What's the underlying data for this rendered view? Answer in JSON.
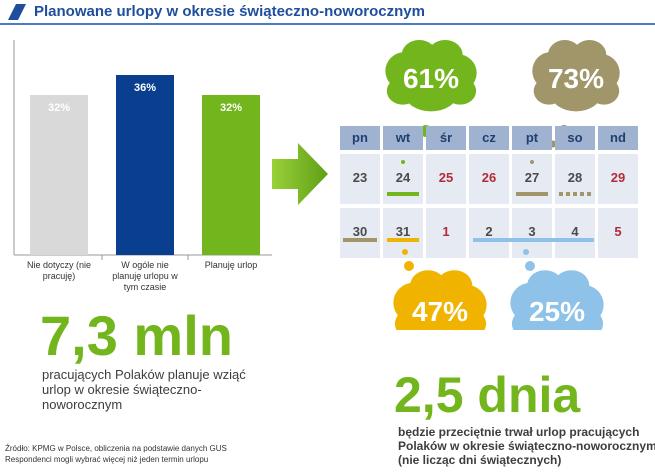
{
  "header": {
    "title": "Planowane urlopy w okresie świąteczno-noworocznym"
  },
  "colors": {
    "accent_blue": "#1f4e9c",
    "gray_bar": "#d9d9d9",
    "navy_bar": "#0a3e8e",
    "green": "#72b51c",
    "olive": "#a0966a",
    "yellow": "#f0b400",
    "light_blue": "#8ec2e8",
    "day_header": "#9fb3d1",
    "day_cell": "#e6ebf3",
    "holiday_red": "#b22c38"
  },
  "chart_data": {
    "type": "bar",
    "categories": [
      "Nie dotyczy (nie pracuję)",
      "W ogóle nie planuję urlopu w tym czasie",
      "Planuję urlop"
    ],
    "values": [
      32,
      36,
      32
    ],
    "value_labels": [
      "32%",
      "36%",
      "32%"
    ],
    "title": "",
    "xlabel": "",
    "ylabel": "",
    "ylim": [
      0,
      40
    ]
  },
  "stat1": {
    "value": "7,3 mln",
    "description": "pracujących Polaków planuje wziąć urlop w okresie świąteczno-noworocznym"
  },
  "source": {
    "line1": "Źródło: KPMG w Polsce, obliczenia na podstawie danych GUS",
    "line2": "Respondenci mogli wybrać więcej niż jeden termin urlopu"
  },
  "calendar": {
    "days": [
      "pn",
      "wt",
      "śr",
      "cz",
      "pt",
      "so",
      "nd"
    ],
    "week1": [
      "23",
      "24",
      "25",
      "26",
      "27",
      "28",
      "29"
    ],
    "week2": [
      "30",
      "31",
      "1",
      "2",
      "3",
      "4",
      "5"
    ],
    "holidays": [
      "25",
      "26",
      "29",
      "1",
      "5"
    ]
  },
  "bubbles": {
    "b61": "61%",
    "b73": "73%",
    "b47": "47%",
    "b25": "25%"
  },
  "stat2": {
    "value": "2,5 dnia",
    "description": "będzie przeciętnie trwał urlop pracujących Polaków w okresie świąteczno-noworocznym (nie licząc dni świątecznych)"
  }
}
